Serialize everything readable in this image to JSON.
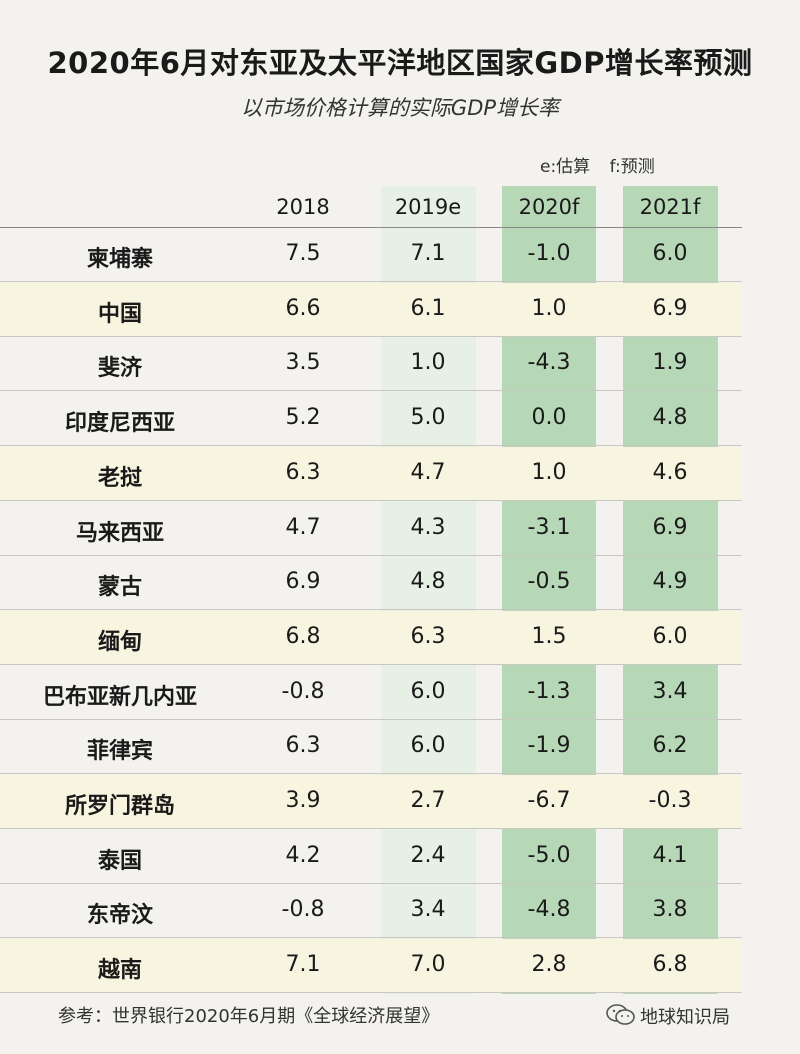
{
  "chart_data": {
    "type": "table",
    "title": "2020年6月对东亚及太平洋地区国家GDP增长率预测",
    "subtitle": "以市场价格计算的实际GDP增长率",
    "legend_notes": [
      "e:估算",
      "f:预测"
    ],
    "columns": [
      "2018",
      "2019e",
      "2020f",
      "2021f"
    ],
    "rows": [
      {
        "country": "柬埔寨",
        "values": [
          "7.5",
          "7.1",
          "-1.0",
          "6.0"
        ]
      },
      {
        "country": "中国",
        "values": [
          "6.6",
          "6.1",
          "1.0",
          "6.9"
        ]
      },
      {
        "country": "斐济",
        "values": [
          "3.5",
          "1.0",
          "-4.3",
          "1.9"
        ]
      },
      {
        "country": "印度尼西亚",
        "values": [
          "5.2",
          "5.0",
          "0.0",
          "4.8"
        ]
      },
      {
        "country": "老挝",
        "values": [
          "6.3",
          "4.7",
          "1.0",
          "4.6"
        ]
      },
      {
        "country": "马来西亚",
        "values": [
          "4.7",
          "4.3",
          "-3.1",
          "6.9"
        ]
      },
      {
        "country": "蒙古",
        "values": [
          "6.9",
          "4.8",
          "-0.5",
          "4.9"
        ]
      },
      {
        "country": "缅甸",
        "values": [
          "6.8",
          "6.3",
          "1.5",
          "6.0"
        ]
      },
      {
        "country": "巴布亚新几内亚",
        "values": [
          "-0.8",
          "6.0",
          "-1.3",
          "3.4"
        ]
      },
      {
        "country": "菲律宾",
        "values": [
          "6.3",
          "6.0",
          "-1.9",
          "6.2"
        ]
      },
      {
        "country": "所罗门群岛",
        "values": [
          "3.9",
          "2.7",
          "-6.7",
          "-0.3"
        ]
      },
      {
        "country": "泰国",
        "values": [
          "4.2",
          "2.4",
          "-5.0",
          "4.1"
        ]
      },
      {
        "country": "东帝汶",
        "values": [
          "-0.8",
          "3.4",
          "-4.8",
          "3.8"
        ]
      },
      {
        "country": "越南",
        "values": [
          "7.1",
          "7.0",
          "2.8",
          "6.8"
        ]
      }
    ],
    "alternating_row_color": "#f7f5e0",
    "forecast_column_color": "#b7d8b7",
    "estimate_column_color": "#e6f0e5"
  },
  "footer": {
    "source": "参考：世界银行2020年6月期《全球经济展望》",
    "brand": "地球知识局",
    "brand_icon": "wechat-icon"
  }
}
